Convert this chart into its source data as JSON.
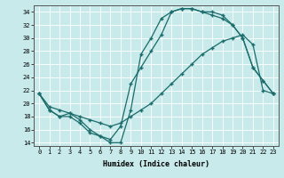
{
  "xlabel": "Humidex (Indice chaleur)",
  "ylabel": "",
  "x_ticks": [
    0,
    1,
    2,
    3,
    4,
    5,
    6,
    7,
    8,
    9,
    10,
    11,
    12,
    13,
    14,
    15,
    16,
    17,
    18,
    19,
    20,
    21,
    22,
    23
  ],
  "xlim": [
    -0.5,
    23.5
  ],
  "ylim": [
    13.5,
    35.0
  ],
  "y_ticks": [
    14,
    16,
    18,
    20,
    22,
    24,
    26,
    28,
    30,
    32,
    34
  ],
  "bg_color": "#c8eaea",
  "grid_color": "#ffffff",
  "line_color": "#1a6b6b",
  "line1_x": [
    0,
    1,
    2,
    3,
    4,
    5,
    6,
    7,
    8,
    9,
    10,
    11,
    12,
    13,
    14,
    15,
    16,
    17,
    18,
    19,
    20,
    21,
    22,
    23
  ],
  "line1_y": [
    21.5,
    19.0,
    18.0,
    18.5,
    17.5,
    16.0,
    15.0,
    14.0,
    14.0,
    19.0,
    27.5,
    30.0,
    33.0,
    34.0,
    34.5,
    34.5,
    34.0,
    34.0,
    33.5,
    32.0,
    30.0,
    25.5,
    23.5,
    21.5
  ],
  "line2_x": [
    0,
    1,
    2,
    3,
    4,
    5,
    6,
    7,
    8,
    9,
    10,
    11,
    12,
    13,
    14,
    15,
    16,
    17,
    18,
    19,
    20,
    21,
    22,
    23
  ],
  "line2_y": [
    21.5,
    19.0,
    18.0,
    18.0,
    17.0,
    15.5,
    15.0,
    14.5,
    16.5,
    23.0,
    25.5,
    28.0,
    30.5,
    34.0,
    34.5,
    34.5,
    34.0,
    33.5,
    33.0,
    32.0,
    30.0,
    25.5,
    23.5,
    21.5
  ],
  "line3_x": [
    0,
    1,
    2,
    3,
    4,
    5,
    6,
    7,
    8,
    9,
    10,
    11,
    12,
    13,
    14,
    15,
    16,
    17,
    18,
    19,
    20,
    21,
    22,
    23
  ],
  "line3_y": [
    21.5,
    19.5,
    19.0,
    18.5,
    18.0,
    17.5,
    17.0,
    16.5,
    17.0,
    18.0,
    19.0,
    20.0,
    21.5,
    23.0,
    24.5,
    26.0,
    27.5,
    28.5,
    29.5,
    30.0,
    30.5,
    29.0,
    22.0,
    21.5
  ]
}
